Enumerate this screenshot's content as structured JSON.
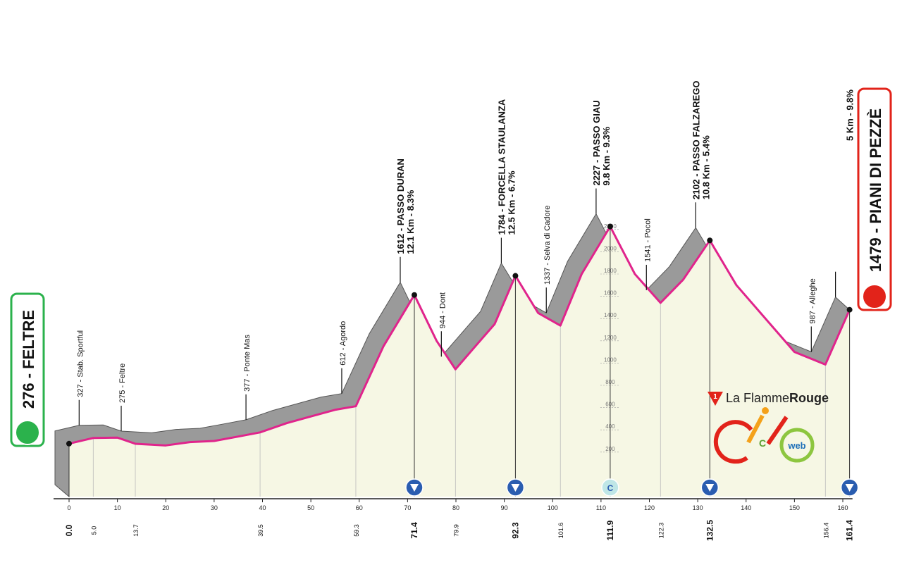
{
  "chart_data": {
    "type": "area",
    "x": [
      0,
      5.0,
      10,
      13.7,
      20,
      25,
      30,
      35,
      39.5,
      45,
      50,
      55,
      59.3,
      65,
      71.4,
      76,
      79.9,
      84,
      88,
      92.3,
      97,
      101.6,
      106,
      111.9,
      117,
      122.3,
      127,
      132.5,
      138,
      145,
      150,
      156.4,
      161.4
    ],
    "values": [
      276,
      327,
      330,
      275,
      260,
      290,
      300,
      340,
      377,
      460,
      520,
      580,
      612,
      1150,
      1612,
      1200,
      944,
      1150,
      1350,
      1784,
      1450,
      1337,
      1800,
      2227,
      1800,
      1541,
      1750,
      2102,
      1700,
      1350,
      1100,
      987,
      1479
    ],
    "color": "#e0248c",
    "fill": "#f6f7e4",
    "shadow": "#9a9a9a",
    "xlim": [
      0,
      162
    ],
    "ylim": [
      -200,
      2300
    ],
    "xticks": [
      0,
      10,
      20,
      30,
      40,
      50,
      60,
      70,
      80,
      90,
      100,
      110,
      120,
      130,
      140,
      150,
      160
    ],
    "yticks": [
      200,
      400,
      600,
      800,
      1000,
      1200,
      1400,
      1600,
      1800,
      2000,
      2200
    ],
    "waypoints": [
      {
        "value": 0,
        "label": "0.0",
        "major": true
      },
      {
        "value": 5.0,
        "label": "5.0",
        "name": "327 - Stab. Sportful"
      },
      {
        "value": 13.7,
        "label": "13.7",
        "name": "275 - Feltre"
      },
      {
        "value": 39.5,
        "label": "39.5",
        "name": "377 - Ponte Mas"
      },
      {
        "value": 59.3,
        "label": "59.3",
        "name": "612 - Agordo"
      },
      {
        "value": 71.4,
        "label": "71.4",
        "name": "1612 - PASSO DURAN",
        "note": "12.1 Km - 8.3%",
        "major": true
      },
      {
        "value": 79.9,
        "label": "79.9",
        "name": "944 - Dont"
      },
      {
        "value": 92.3,
        "label": "92.3",
        "name": "1784 - FORCELLA STAULANZA",
        "note": "12.5 Km - 6.7%",
        "major": true
      },
      {
        "value": 101.6,
        "label": "101.6",
        "name": "1337 - Selva di Cadore"
      },
      {
        "value": 111.9,
        "label": "111.9",
        "name": "2227 - PASSO GIAU",
        "note": "9.8 Km - 9.3%",
        "major": true,
        "marker": "C"
      },
      {
        "value": 122.3,
        "label": "122.3",
        "name": "1541 - Pocol"
      },
      {
        "value": 132.5,
        "label": "132.5",
        "name": "2102 - PASSO FALZAREGO",
        "note": "10.8 Km - 5.4%",
        "major": true
      },
      {
        "value": 156.4,
        "label": "156.4",
        "name": "987 - Alleghe"
      },
      {
        "value": 161.4,
        "label": "161.4",
        "note": "5 Km - 9.8%",
        "major": true
      }
    ],
    "start": "276 - FELTRE",
    "finish": "1479 - PIANI DI PEZZÈ",
    "logo": {
      "flamme": "La Flamme",
      "rouge": "Rouge",
      "one": "1",
      "web": "web",
      "c": "C"
    }
  }
}
